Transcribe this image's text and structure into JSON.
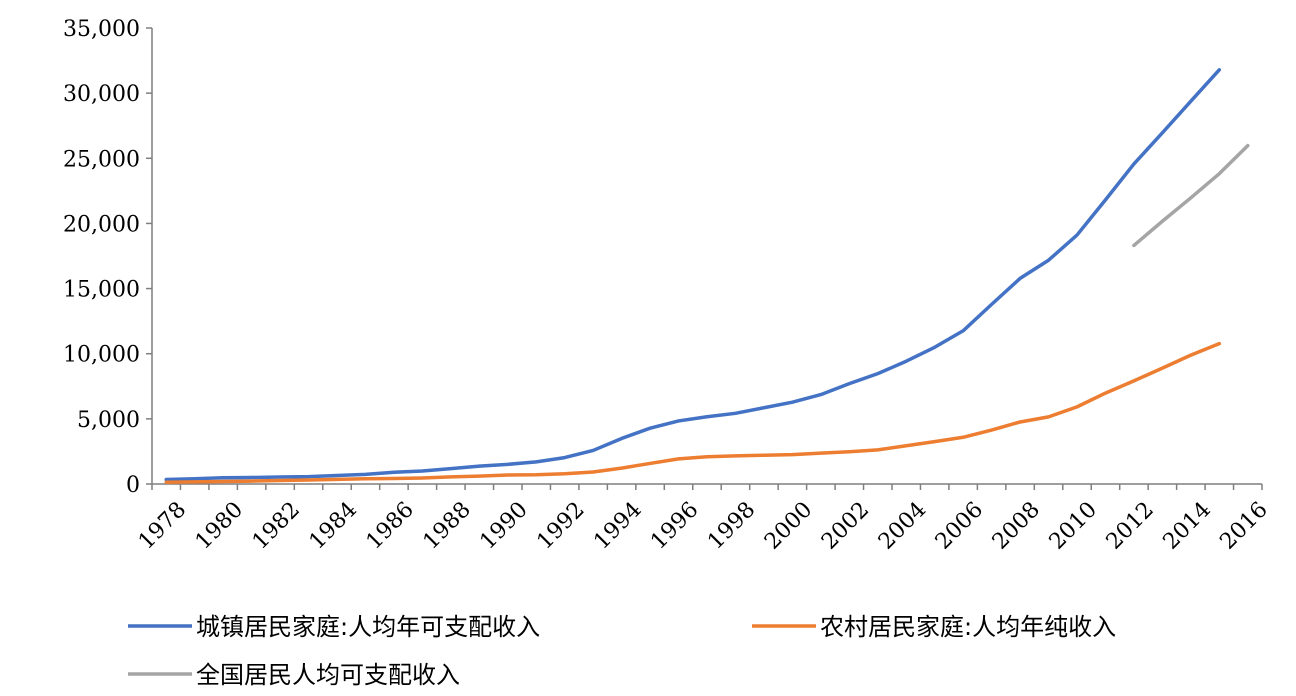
{
  "chart_data": {
    "type": "line",
    "x": [
      "1978",
      "1979",
      "1980",
      "1981",
      "1982",
      "1983",
      "1984",
      "1985",
      "1986",
      "1987",
      "1988",
      "1989",
      "1990",
      "1991",
      "1992",
      "1993",
      "1994",
      "1995",
      "1996",
      "1997",
      "1998",
      "1999",
      "2000",
      "2001",
      "2002",
      "2003",
      "2004",
      "2005",
      "2006",
      "2007",
      "2008",
      "2009",
      "2010",
      "2011",
      "2012",
      "2013",
      "2014",
      "2015",
      "2016"
    ],
    "x_tick_labels": [
      "1978",
      "1980",
      "1982",
      "1984",
      "1986",
      "1988",
      "1990",
      "1992",
      "1994",
      "1996",
      "1998",
      "2000",
      "2002",
      "2004",
      "2006",
      "2008",
      "2010",
      "2012",
      "2014",
      "2016"
    ],
    "y_tick_labels": [
      "0",
      "5,000",
      "10,000",
      "15,000",
      "20,000",
      "25,000",
      "30,000",
      "35,000"
    ],
    "ylim": [
      0,
      35000
    ],
    "y_ticks": [
      0,
      5000,
      10000,
      15000,
      20000,
      25000,
      30000,
      35000
    ],
    "legend_position": "bottom",
    "series": [
      {
        "name": "城镇居民家庭:人均年可支配收入",
        "color": "#4472C4",
        "values": [
          343,
          405,
          478,
          500,
          535,
          564,
          652,
          739,
          900,
          1002,
          1180,
          1374,
          1510,
          1701,
          2027,
          2577,
          3496,
          4283,
          4839,
          5160,
          5425,
          5854,
          6280,
          6860,
          7703,
          8472,
          9422,
          10493,
          11760,
          13786,
          15781,
          17175,
          19109,
          21810,
          24565,
          26955,
          29381,
          31790,
          null
        ]
      },
      {
        "name": "农村居民家庭:人均年纯收入",
        "color": "#ED7D31",
        "values": [
          134,
          160,
          191,
          223,
          270,
          310,
          355,
          398,
          424,
          463,
          545,
          602,
          686,
          709,
          784,
          922,
          1221,
          1578,
          1926,
          2090,
          2162,
          2210,
          2253,
          2366,
          2476,
          2622,
          2936,
          3255,
          3587,
          4140,
          4761,
          5153,
          5919,
          6977,
          7917,
          8896,
          9892,
          10772,
          null
        ]
      },
      {
        "name": "全国居民人均可支配收入",
        "color": "#A5A5A5",
        "values": [
          null,
          null,
          null,
          null,
          null,
          null,
          null,
          null,
          null,
          null,
          null,
          null,
          null,
          null,
          null,
          null,
          null,
          null,
          null,
          null,
          null,
          null,
          null,
          null,
          null,
          null,
          null,
          null,
          null,
          null,
          null,
          null,
          null,
          null,
          18311,
          20167,
          21966,
          23821,
          25974
        ]
      }
    ]
  }
}
